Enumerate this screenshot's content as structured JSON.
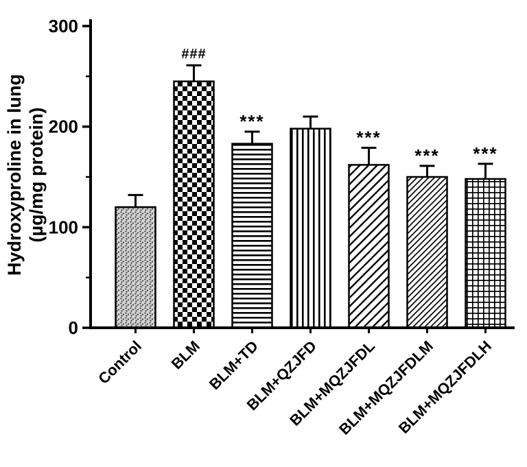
{
  "chart_data": {
    "type": "bar",
    "title": "",
    "ylabel_line1": "Hydroxyproline in lung",
    "ylabel_line2": "(µg/mg protein)",
    "xlabel": "",
    "ylim": [
      0,
      300
    ],
    "yticks": [
      0,
      100,
      200,
      300
    ],
    "minor_yticks": [
      50,
      150,
      250
    ],
    "grid": false,
    "legend_position": "none",
    "categories": [
      "Control",
      "BLM",
      "BLM+TD",
      "BLM+QZJFD",
      "BLM+MQZJFDL",
      "BLM+MQZJFDLM",
      "BLM+MQZJFDLH"
    ],
    "values": [
      120,
      245,
      183,
      198,
      162,
      150,
      148
    ],
    "errors": [
      12,
      16,
      12,
      12,
      17,
      11,
      15
    ],
    "annotations": [
      "",
      "###",
      "***",
      "",
      "***",
      "***",
      "***"
    ],
    "bar_patterns": [
      "stipple",
      "checker",
      "hlines",
      "vlines",
      "diag-coarse",
      "diag-fine",
      "grid"
    ],
    "bar_outline_color": "#000000",
    "axis_color": "#000000",
    "background_color": "#ffffff"
  }
}
